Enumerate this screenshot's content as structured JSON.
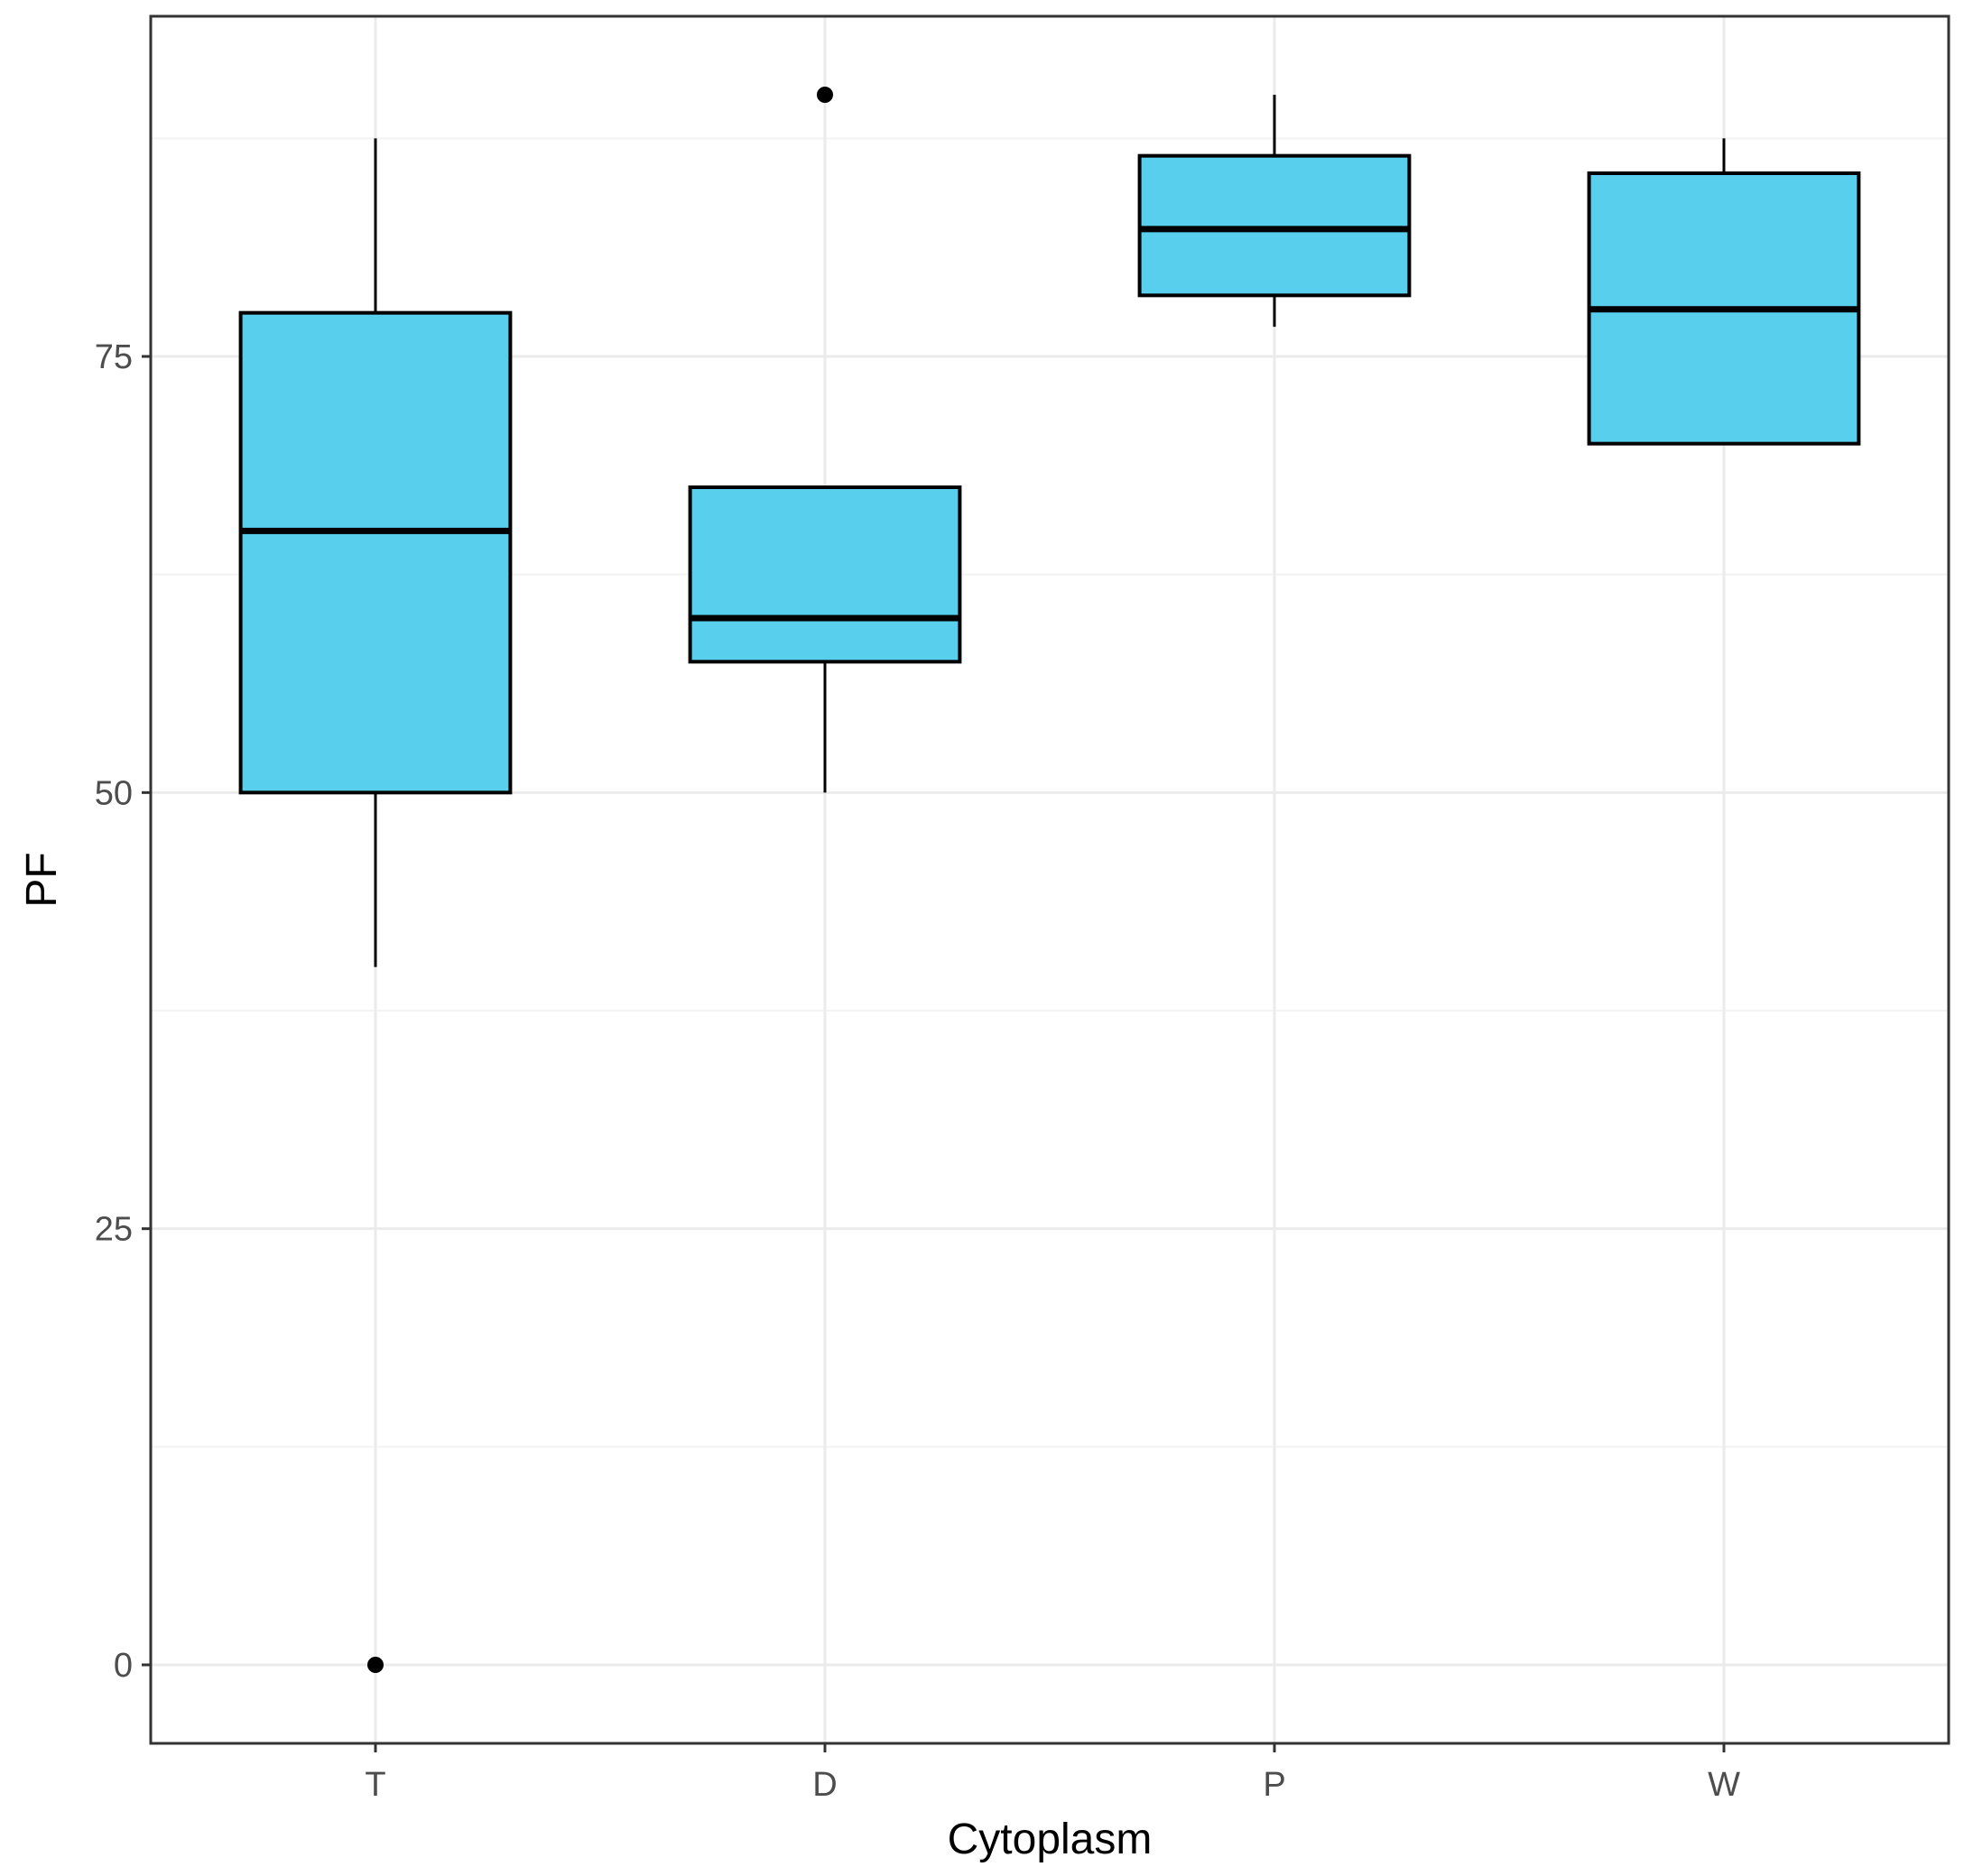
{
  "chart_data": {
    "type": "boxplot",
    "xlabel": "Cytoplasm",
    "ylabel": "PF",
    "categories": [
      "T",
      "D",
      "P",
      "W"
    ],
    "ylim": [
      -4.5,
      94.5
    ],
    "yticks": [
      0,
      25,
      50,
      75
    ],
    "grid": true,
    "boxes": [
      {
        "category": "T",
        "lower_whisker": 40,
        "q1": 50,
        "median": 65,
        "q3": 77.5,
        "upper_whisker": 87.5,
        "outliers": [
          0
        ]
      },
      {
        "category": "D",
        "lower_whisker": 50,
        "q1": 57.5,
        "median": 60,
        "q3": 67.5,
        "upper_whisker": 67.5,
        "outliers": [
          90
        ]
      },
      {
        "category": "P",
        "lower_whisker": 76.7,
        "q1": 78.5,
        "median": 82.3,
        "q3": 86.5,
        "upper_whisker": 90,
        "outliers": []
      },
      {
        "category": "W",
        "lower_whisker": 70,
        "q1": 70,
        "median": 77.7,
        "q3": 85.5,
        "upper_whisker": 87.5,
        "outliers": []
      }
    ],
    "colors": {
      "box_fill": "#58CFEC",
      "box_stroke": "#000000",
      "grid_major": "#EBEBEB",
      "grid_minor": "#F3F3F3",
      "panel_border": "#333333"
    }
  }
}
